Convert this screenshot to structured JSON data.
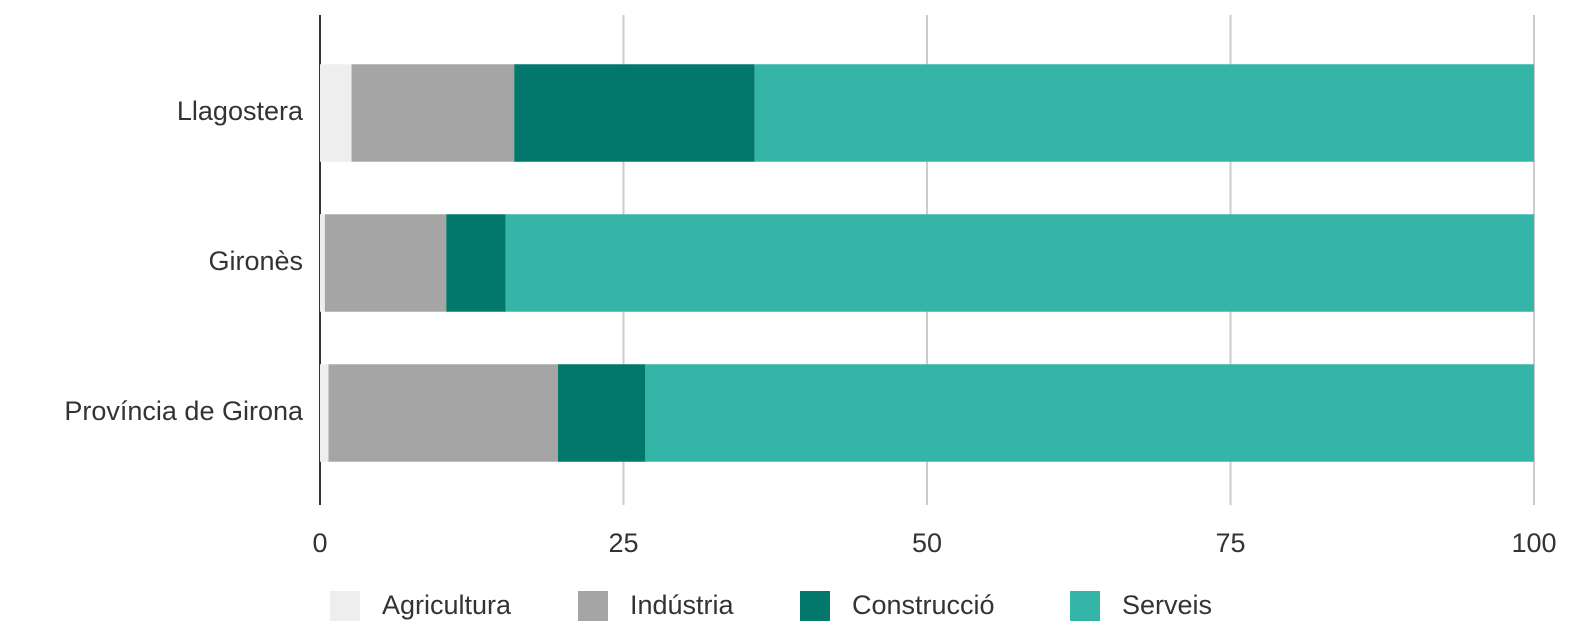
{
  "chart_data": {
    "type": "stacked-bar-horizontal",
    "categories": [
      "Llagostera",
      "Gironès",
      "Província de Girona"
    ],
    "series": [
      {
        "name": "Agricultura",
        "color": "#eeeeee",
        "values": [
          2.6,
          0.4,
          0.7
        ]
      },
      {
        "name": "Indústria",
        "color": "#a5a5a5",
        "values": [
          13.4,
          10.0,
          18.9
        ]
      },
      {
        "name": "Construcció",
        "color": "#02776b",
        "values": [
          19.8,
          4.9,
          7.2
        ]
      },
      {
        "name": "Serveis",
        "color": "#34b5a8",
        "values": [
          64.2,
          84.7,
          73.2
        ]
      }
    ],
    "xlim": [
      0,
      100
    ],
    "xticks": [
      0,
      25,
      50,
      75,
      100
    ],
    "grid": true,
    "legend": "bottom"
  }
}
